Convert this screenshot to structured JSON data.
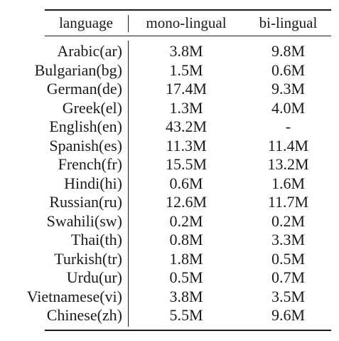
{
  "table": {
    "headers": {
      "language": "language",
      "mono": "mono-lingual",
      "bi": "bi-lingual"
    },
    "rows": [
      {
        "language": "Arabic(ar)",
        "mono": "3.8M",
        "bi": "9.8M"
      },
      {
        "language": "Bulgarian(bg)",
        "mono": "1.5M",
        "bi": "0.6M"
      },
      {
        "language": "German(de)",
        "mono": "17.4M",
        "bi": "9.3M"
      },
      {
        "language": "Greek(el)",
        "mono": "1.3M",
        "bi": "4.0M"
      },
      {
        "language": "English(en)",
        "mono": "43.2M",
        "bi": "-"
      },
      {
        "language": "Spanish(es)",
        "mono": "11.3M",
        "bi": "11.4M"
      },
      {
        "language": "French(fr)",
        "mono": "15.5M",
        "bi": "13.2M"
      },
      {
        "language": "Hindi(hi)",
        "mono": "0.6M",
        "bi": "1.6M"
      },
      {
        "language": "Russian(ru)",
        "mono": "12.6M",
        "bi": "11.7M"
      },
      {
        "language": "Swahili(sw)",
        "mono": "0.2M",
        "bi": "0.2M"
      },
      {
        "language": "Thai(th)",
        "mono": "0.8M",
        "bi": "3.3M"
      },
      {
        "language": "Turkish(tr)",
        "mono": "1.8M",
        "bi": "0.5M"
      },
      {
        "language": "Urdu(ur)",
        "mono": "0.5M",
        "bi": "0.7M"
      },
      {
        "language": "Vietnamese(vi)",
        "mono": "3.8M",
        "bi": "3.5M"
      },
      {
        "language": "Chinese(zh)",
        "mono": "5.5M",
        "bi": "9.6M"
      }
    ]
  }
}
